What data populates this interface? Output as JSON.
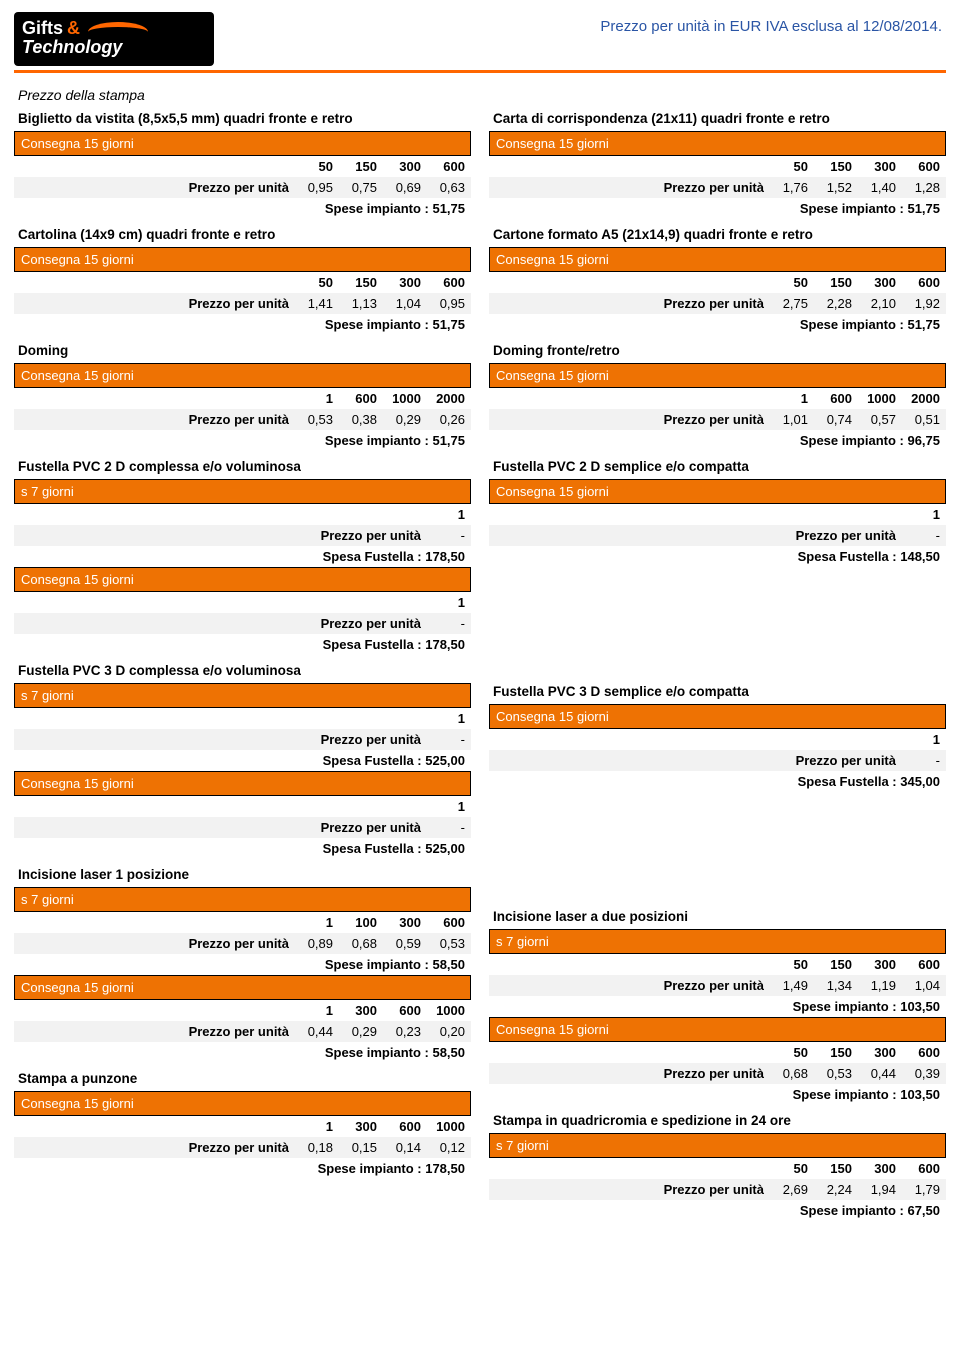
{
  "header": {
    "logo_gifts": "Gifts",
    "logo_amp": "&",
    "logo_bottom": "Technology",
    "date_line": "Prezzo per unità in EUR IVA esclusa al 12/08/2014."
  },
  "section_title": "Prezzo della stampa",
  "labels": {
    "ppu": "Prezzo per unità",
    "consegna15": "Consegna 15 giorni",
    "s7": "s 7 giorni"
  },
  "left": [
    {
      "title": "Biglietto da vistita (8,5x5,5 mm) quadri fronte e retro",
      "variants": [
        {
          "delivery": "Consegna 15 giorni",
          "cols": [
            "50",
            "150",
            "300",
            "600"
          ],
          "vals": [
            "0,95",
            "0,75",
            "0,69",
            "0,63"
          ],
          "footer": "Spese impianto : 51,75"
        }
      ]
    },
    {
      "title": "Cartolina (14x9 cm) quadri fronte e retro",
      "variants": [
        {
          "delivery": "Consegna 15 giorni",
          "cols": [
            "50",
            "150",
            "300",
            "600"
          ],
          "vals": [
            "1,41",
            "1,13",
            "1,04",
            "0,95"
          ],
          "footer": "Spese impianto : 51,75"
        }
      ]
    },
    {
      "title": "Doming",
      "variants": [
        {
          "delivery": "Consegna 15 giorni",
          "cols": [
            "1",
            "600",
            "1000",
            "2000"
          ],
          "vals": [
            "0,53",
            "0,38",
            "0,29",
            "0,26"
          ],
          "footer": "Spese impianto : 51,75"
        }
      ]
    },
    {
      "title": "Fustella PVC 2 D complessa e/o voluminosa",
      "variants": [
        {
          "delivery": "s 7 giorni",
          "cols": [
            "1"
          ],
          "vals": [
            "-"
          ],
          "footer": "Spesa Fustella : 178,50"
        },
        {
          "delivery": "Consegna 15 giorni",
          "cols": [
            "1"
          ],
          "vals": [
            "-"
          ],
          "footer": "Spesa Fustella : 178,50"
        }
      ]
    },
    {
      "title": "Fustella PVC 3 D complessa e/o voluminosa",
      "variants": [
        {
          "delivery": "s 7 giorni",
          "cols": [
            "1"
          ],
          "vals": [
            "-"
          ],
          "footer": "Spesa Fustella : 525,00"
        },
        {
          "delivery": "Consegna 15 giorni",
          "cols": [
            "1"
          ],
          "vals": [
            "-"
          ],
          "footer": "Spesa Fustella : 525,00"
        }
      ]
    },
    {
      "title": "Incisione laser 1 posizione",
      "variants": [
        {
          "delivery": "s 7 giorni",
          "cols": [
            "1",
            "100",
            "300",
            "600"
          ],
          "vals": [
            "0,89",
            "0,68",
            "0,59",
            "0,53"
          ],
          "footer": "Spese impianto : 58,50"
        },
        {
          "delivery": "Consegna 15 giorni",
          "cols": [
            "1",
            "300",
            "600",
            "1000"
          ],
          "vals": [
            "0,44",
            "0,29",
            "0,23",
            "0,20"
          ],
          "footer": "Spese impianto : 58,50"
        }
      ]
    },
    {
      "title": "Stampa a punzone",
      "variants": [
        {
          "delivery": "Consegna 15 giorni",
          "cols": [
            "1",
            "300",
            "600",
            "1000"
          ],
          "vals": [
            "0,18",
            "0,15",
            "0,14",
            "0,12"
          ],
          "footer": "Spese impianto : 178,50"
        }
      ]
    }
  ],
  "right": [
    {
      "title": "Carta di corrispondenza (21x11) quadri fronte e retro",
      "variants": [
        {
          "delivery": "Consegna 15 giorni",
          "cols": [
            "50",
            "150",
            "300",
            "600"
          ],
          "vals": [
            "1,76",
            "1,52",
            "1,40",
            "1,28"
          ],
          "footer": "Spese impianto : 51,75"
        }
      ]
    },
    {
      "title": "Cartone formato A5 (21x14,9) quadri fronte e retro",
      "variants": [
        {
          "delivery": "Consegna 15 giorni",
          "cols": [
            "50",
            "150",
            "300",
            "600"
          ],
          "vals": [
            "2,75",
            "2,28",
            "2,10",
            "1,92"
          ],
          "footer": "Spese impianto : 51,75"
        }
      ]
    },
    {
      "title": "Doming fronte/retro",
      "variants": [
        {
          "delivery": "Consegna 15 giorni",
          "cols": [
            "1",
            "600",
            "1000",
            "2000"
          ],
          "vals": [
            "1,01",
            "0,74",
            "0,57",
            "0,51"
          ],
          "footer": "Spese impianto : 96,75"
        }
      ]
    },
    {
      "title": "Fustella PVC 2 D semplice e/o compatta",
      "variants": [
        {
          "delivery": "Consegna 15 giorni",
          "cols": [
            "1"
          ],
          "vals": [
            "-"
          ],
          "footer": "Spesa Fustella : 148,50"
        }
      ]
    },
    {
      "title": "Fustella PVC 3 D semplice e/o compatta",
      "variants": [
        {
          "delivery": "Consegna 15 giorni",
          "cols": [
            "1"
          ],
          "vals": [
            "-"
          ],
          "footer": "Spesa Fustella : 345,00"
        }
      ],
      "spacer_before": true
    },
    {
      "title": "Incisione laser a due posizioni",
      "variants": [
        {
          "delivery": "s 7 giorni",
          "cols": [
            "50",
            "150",
            "300",
            "600"
          ],
          "vals": [
            "1,49",
            "1,34",
            "1,19",
            "1,04"
          ],
          "footer": "Spese impianto : 103,50"
        },
        {
          "delivery": "Consegna 15 giorni",
          "cols": [
            "50",
            "150",
            "300",
            "600"
          ],
          "vals": [
            "0,68",
            "0,53",
            "0,44",
            "0,39"
          ],
          "footer": "Spese impianto : 103,50"
        }
      ],
      "spacer_before": true
    },
    {
      "title": "Stampa in quadricromia e spedizione in 24 ore",
      "variants": [
        {
          "delivery": "s 7 giorni",
          "cols": [
            "50",
            "150",
            "300",
            "600"
          ],
          "vals": [
            "2,69",
            "2,24",
            "1,94",
            "1,79"
          ],
          "footer": "Spese impianto : 67,50"
        }
      ]
    }
  ],
  "style": {
    "accent": "#ee7203",
    "alt_bg": "#f2f2f2",
    "right_spacer_heights": {
      "before_fustella3d": 109,
      "before_incisione": 109
    }
  }
}
